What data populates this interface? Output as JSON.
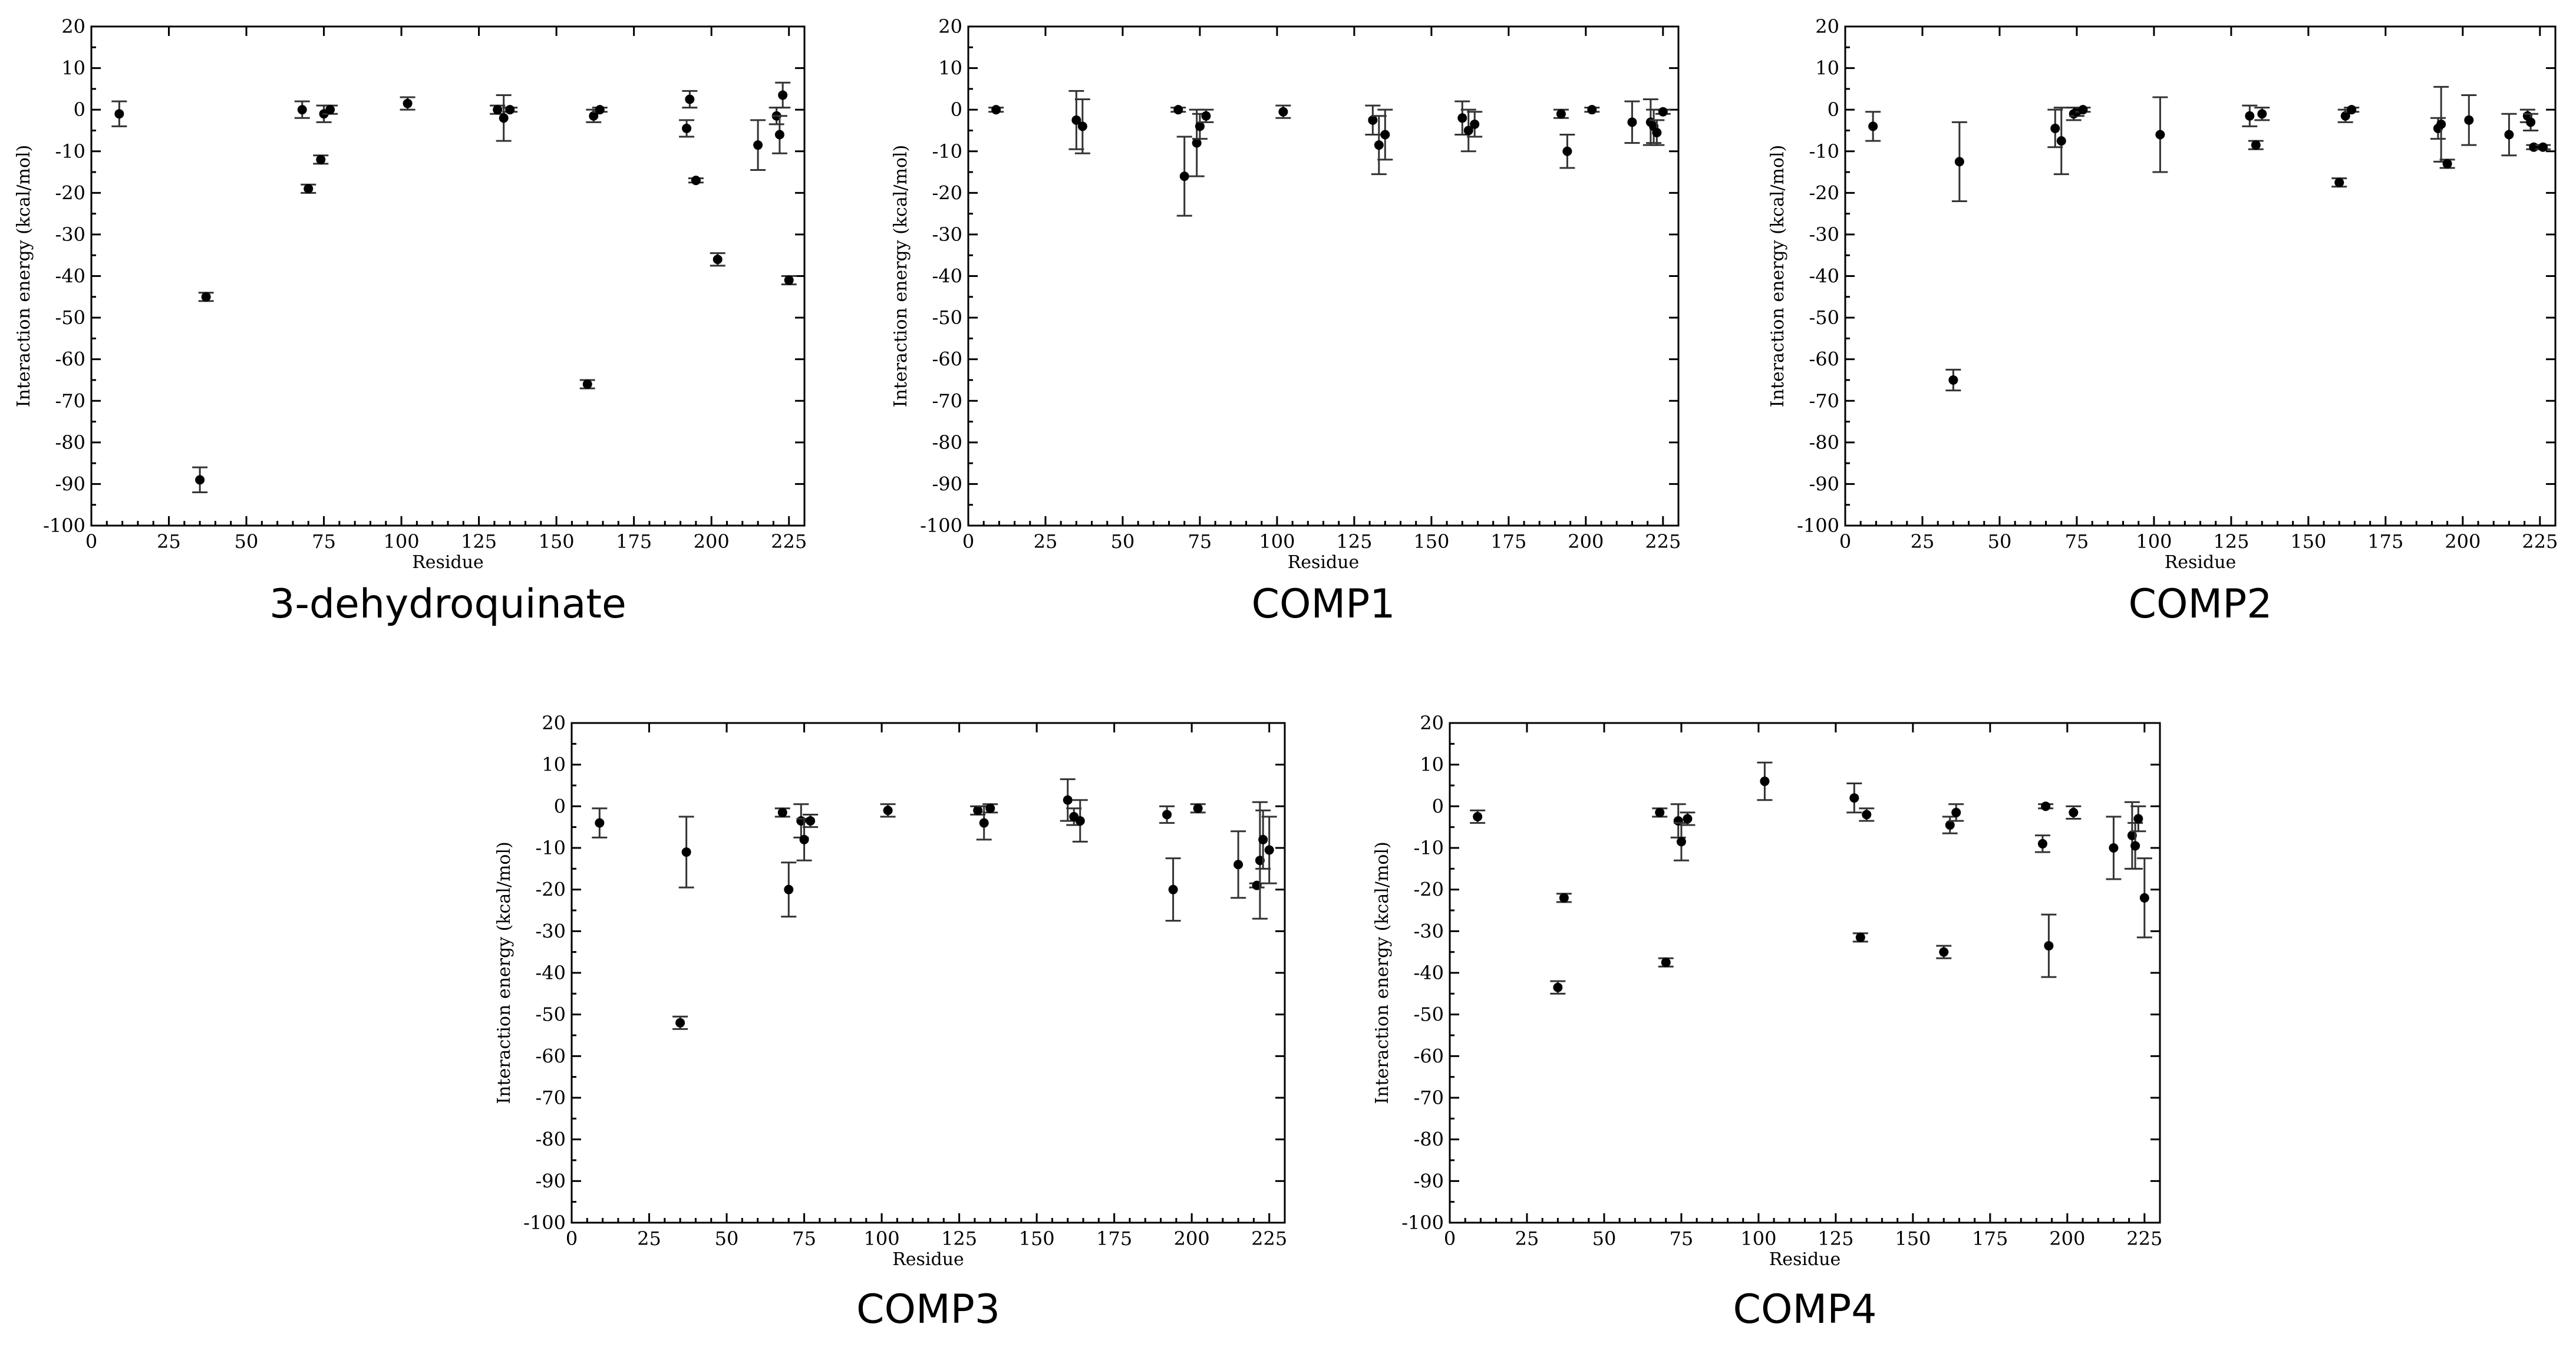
{
  "chart_data": [
    {
      "type": "scatter",
      "title": "3-dehydroquinate",
      "xlabel": "Residue",
      "ylabel": "Interaction energy (kcal/mol)",
      "xlim": [
        0,
        230
      ],
      "ylim": [
        -100,
        20
      ],
      "xticks": [
        0,
        25,
        50,
        75,
        100,
        125,
        150,
        175,
        200,
        225
      ],
      "yticks": [
        -100,
        -90,
        -80,
        -70,
        -60,
        -50,
        -40,
        -30,
        -20,
        -10,
        0,
        10,
        20
      ],
      "points": [
        {
          "x": 9,
          "y": -1,
          "err": 3
        },
        {
          "x": 35,
          "y": -89,
          "err": 3
        },
        {
          "x": 37,
          "y": -45,
          "err": 1
        },
        {
          "x": 68,
          "y": 0,
          "err": 2
        },
        {
          "x": 70,
          "y": -19,
          "err": 1
        },
        {
          "x": 74,
          "y": -12,
          "err": 1
        },
        {
          "x": 75,
          "y": -1,
          "err": 2
        },
        {
          "x": 77,
          "y": 0,
          "err": 1
        },
        {
          "x": 102,
          "y": 1.5,
          "err": 1.5
        },
        {
          "x": 131,
          "y": 0,
          "err": 1
        },
        {
          "x": 133,
          "y": -2,
          "err": 5.5
        },
        {
          "x": 135,
          "y": 0,
          "err": 0.5
        },
        {
          "x": 160,
          "y": -66,
          "err": 1
        },
        {
          "x": 162,
          "y": -1.5,
          "err": 1.5
        },
        {
          "x": 164,
          "y": 0,
          "err": 0.5
        },
        {
          "x": 192,
          "y": -4.5,
          "err": 2
        },
        {
          "x": 193,
          "y": 2.5,
          "err": 2
        },
        {
          "x": 195,
          "y": -17,
          "err": 0.5
        },
        {
          "x": 202,
          "y": -36,
          "err": 1.5
        },
        {
          "x": 215,
          "y": -8.5,
          "err": 6
        },
        {
          "x": 221,
          "y": -1.5,
          "err": 2
        },
        {
          "x": 222,
          "y": -6,
          "err": 4.5
        },
        {
          "x": 223,
          "y": 3.5,
          "err": 3
        },
        {
          "x": 225,
          "y": -41,
          "err": 1
        }
      ]
    },
    {
      "type": "scatter",
      "title": "COMP1",
      "xlabel": "Residue",
      "ylabel": "Interaction energy (kcal/mol)",
      "xlim": [
        0,
        230
      ],
      "ylim": [
        -100,
        20
      ],
      "xticks": [
        0,
        25,
        50,
        75,
        100,
        125,
        150,
        175,
        200,
        225
      ],
      "yticks": [
        -100,
        -90,
        -80,
        -70,
        -60,
        -50,
        -40,
        -30,
        -20,
        -10,
        0,
        10,
        20
      ],
      "points": [
        {
          "x": 9,
          "y": 0,
          "err": 0.5
        },
        {
          "x": 35,
          "y": -2.5,
          "err": 7
        },
        {
          "x": 37,
          "y": -4,
          "err": 6.5
        },
        {
          "x": 68,
          "y": 0,
          "err": 0.5
        },
        {
          "x": 70,
          "y": -16,
          "err": 9.5
        },
        {
          "x": 74,
          "y": -8,
          "err": 8
        },
        {
          "x": 75,
          "y": -4,
          "err": 3
        },
        {
          "x": 77,
          "y": -1.5,
          "err": 1.5
        },
        {
          "x": 102,
          "y": -0.5,
          "err": 1.5
        },
        {
          "x": 131,
          "y": -2.5,
          "err": 3.5
        },
        {
          "x": 133,
          "y": -8.5,
          "err": 7
        },
        {
          "x": 135,
          "y": -6,
          "err": 6
        },
        {
          "x": 160,
          "y": -2,
          "err": 4
        },
        {
          "x": 162,
          "y": -5,
          "err": 5
        },
        {
          "x": 164,
          "y": -3.5,
          "err": 3
        },
        {
          "x": 192,
          "y": -1,
          "err": 1
        },
        {
          "x": 194,
          "y": -10,
          "err": 4
        },
        {
          "x": 202,
          "y": 0,
          "err": 0.5
        },
        {
          "x": 215,
          "y": -3,
          "err": 5
        },
        {
          "x": 221,
          "y": -3,
          "err": 5.5
        },
        {
          "x": 222,
          "y": -4,
          "err": 4
        },
        {
          "x": 223,
          "y": -5.5,
          "err": 3
        },
        {
          "x": 225,
          "y": -0.5,
          "err": 0.5
        }
      ]
    },
    {
      "type": "scatter",
      "title": "COMP2",
      "xlabel": "Residue",
      "ylabel": "Interaction energy (kcal/mol)",
      "xlim": [
        0,
        230
      ],
      "ylim": [
        -100,
        20
      ],
      "xticks": [
        0,
        25,
        50,
        75,
        100,
        125,
        150,
        175,
        200,
        225
      ],
      "yticks": [
        -100,
        -90,
        -80,
        -70,
        -60,
        -50,
        -40,
        -30,
        -20,
        -10,
        0,
        10,
        20
      ],
      "points": [
        {
          "x": 9,
          "y": -4,
          "err": 3.5
        },
        {
          "x": 35,
          "y": -65,
          "err": 2.5
        },
        {
          "x": 37,
          "y": -12.5,
          "err": 9.5
        },
        {
          "x": 68,
          "y": -4.5,
          "err": 4.5
        },
        {
          "x": 70,
          "y": -7.5,
          "err": 8
        },
        {
          "x": 74,
          "y": -1,
          "err": 1.5
        },
        {
          "x": 75,
          "y": -0.5,
          "err": 1
        },
        {
          "x": 77,
          "y": 0,
          "err": 0.5
        },
        {
          "x": 102,
          "y": -6,
          "err": 9
        },
        {
          "x": 131,
          "y": -1.5,
          "err": 2.5
        },
        {
          "x": 133,
          "y": -8.5,
          "err": 1
        },
        {
          "x": 135,
          "y": -1,
          "err": 1.5
        },
        {
          "x": 160,
          "y": -17.5,
          "err": 1
        },
        {
          "x": 162,
          "y": -1.5,
          "err": 1.5
        },
        {
          "x": 164,
          "y": 0,
          "err": 0.5
        },
        {
          "x": 192,
          "y": -4.5,
          "err": 2.5
        },
        {
          "x": 193,
          "y": -3.5,
          "err": 9
        },
        {
          "x": 195,
          "y": -13,
          "err": 1
        },
        {
          "x": 202,
          "y": -2.5,
          "err": 6
        },
        {
          "x": 215,
          "y": -6,
          "err": 5
        },
        {
          "x": 221,
          "y": -1.5,
          "err": 1.5
        },
        {
          "x": 222,
          "y": -3,
          "err": 2
        },
        {
          "x": 223,
          "y": -9,
          "err": 0.5
        },
        {
          "x": 226,
          "y": -9,
          "err": 0.5
        }
      ]
    },
    {
      "type": "scatter",
      "title": "COMP3",
      "xlabel": "Residue",
      "ylabel": "Interaction energy (kcal/mol)",
      "xlim": [
        0,
        230
      ],
      "ylim": [
        -100,
        20
      ],
      "xticks": [
        0,
        25,
        50,
        75,
        100,
        125,
        150,
        175,
        200,
        225
      ],
      "yticks": [
        -100,
        -90,
        -80,
        -70,
        -60,
        -50,
        -40,
        -30,
        -20,
        -10,
        0,
        10,
        20
      ],
      "points": [
        {
          "x": 9,
          "y": -4,
          "err": 3.5
        },
        {
          "x": 35,
          "y": -52,
          "err": 1.5
        },
        {
          "x": 37,
          "y": -11,
          "err": 8.5
        },
        {
          "x": 68,
          "y": -1.5,
          "err": 1
        },
        {
          "x": 70,
          "y": -20,
          "err": 6.5
        },
        {
          "x": 74,
          "y": -3.5,
          "err": 4
        },
        {
          "x": 75,
          "y": -8,
          "err": 5
        },
        {
          "x": 77,
          "y": -3.5,
          "err": 1.5
        },
        {
          "x": 102,
          "y": -1,
          "err": 1.5
        },
        {
          "x": 131,
          "y": -1,
          "err": 1
        },
        {
          "x": 133,
          "y": -4,
          "err": 4
        },
        {
          "x": 135,
          "y": -0.5,
          "err": 1
        },
        {
          "x": 160,
          "y": 1.5,
          "err": 5
        },
        {
          "x": 162,
          "y": -2.5,
          "err": 2
        },
        {
          "x": 164,
          "y": -3.5,
          "err": 5
        },
        {
          "x": 192,
          "y": -2,
          "err": 2
        },
        {
          "x": 194,
          "y": -20,
          "err": 7.5
        },
        {
          "x": 202,
          "y": -0.5,
          "err": 1
        },
        {
          "x": 215,
          "y": -14,
          "err": 8
        },
        {
          "x": 221,
          "y": -19,
          "err": 0.5
        },
        {
          "x": 222,
          "y": -13,
          "err": 14
        },
        {
          "x": 223,
          "y": -8,
          "err": 7
        },
        {
          "x": 225,
          "y": -10.5,
          "err": 8
        }
      ]
    },
    {
      "type": "scatter",
      "title": "COMP4",
      "xlabel": "Residue",
      "ylabel": "Interaction energy (kcal/mol)",
      "xlim": [
        0,
        230
      ],
      "ylim": [
        -100,
        20
      ],
      "xticks": [
        0,
        25,
        50,
        75,
        100,
        125,
        150,
        175,
        200,
        225
      ],
      "yticks": [
        -100,
        -90,
        -80,
        -70,
        -60,
        -50,
        -40,
        -30,
        -20,
        -10,
        0,
        10,
        20
      ],
      "points": [
        {
          "x": 9,
          "y": -2.5,
          "err": 1.5
        },
        {
          "x": 35,
          "y": -43.5,
          "err": 1.5
        },
        {
          "x": 37,
          "y": -22,
          "err": 1
        },
        {
          "x": 68,
          "y": -1.5,
          "err": 1
        },
        {
          "x": 70,
          "y": -37.5,
          "err": 1
        },
        {
          "x": 74,
          "y": -3.5,
          "err": 4
        },
        {
          "x": 75,
          "y": -8.5,
          "err": 4.5
        },
        {
          "x": 77,
          "y": -3,
          "err": 1.5
        },
        {
          "x": 102,
          "y": 6,
          "err": 4.5
        },
        {
          "x": 131,
          "y": 2,
          "err": 3.5
        },
        {
          "x": 133,
          "y": -31.5,
          "err": 1
        },
        {
          "x": 135,
          "y": -2,
          "err": 1.5
        },
        {
          "x": 160,
          "y": -35,
          "err": 1.5
        },
        {
          "x": 162,
          "y": -4.5,
          "err": 2
        },
        {
          "x": 164,
          "y": -1.5,
          "err": 2
        },
        {
          "x": 192,
          "y": -9,
          "err": 2
        },
        {
          "x": 193,
          "y": 0,
          "err": 0.5
        },
        {
          "x": 194,
          "y": -33.5,
          "err": 7.5
        },
        {
          "x": 202,
          "y": -1.5,
          "err": 1.5
        },
        {
          "x": 215,
          "y": -10,
          "err": 7.5
        },
        {
          "x": 221,
          "y": -7,
          "err": 8
        },
        {
          "x": 222,
          "y": -9.5,
          "err": 5.5
        },
        {
          "x": 223,
          "y": -3,
          "err": 3
        },
        {
          "x": 225,
          "y": -22,
          "err": 9.5
        }
      ]
    }
  ]
}
